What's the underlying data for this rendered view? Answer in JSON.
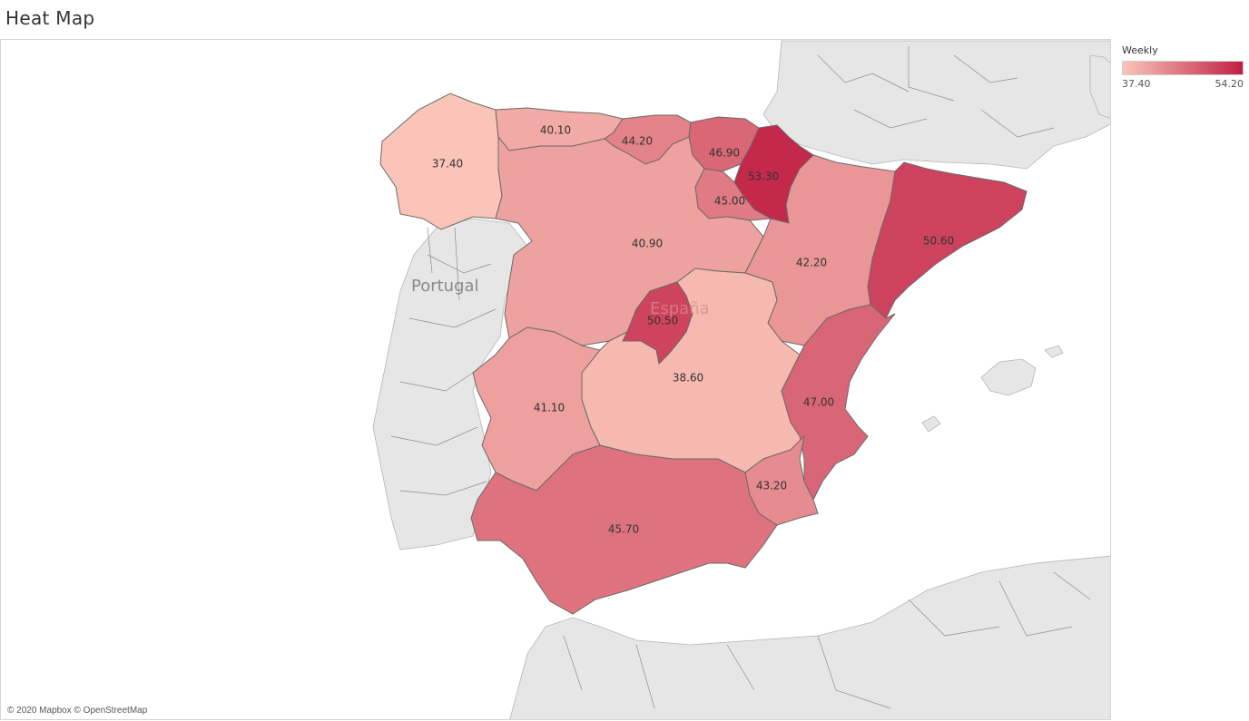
{
  "title": "Heat Map",
  "legend": {
    "title": "Weekly",
    "min_label": "37.40",
    "max_label": "54.20",
    "min": 37.4,
    "max": 54.2,
    "color_low": "#fac5b8",
    "color_high": "#c11f44"
  },
  "attribution": "© 2020 Mapbox © OpenStreetMap",
  "map_labels": {
    "portugal": "Portugal",
    "espana": "España"
  },
  "regions": [
    {
      "id": "galicia",
      "value": 37.4,
      "label": "37.40"
    },
    {
      "id": "asturias",
      "value": 40.1,
      "label": "40.10"
    },
    {
      "id": "cantabria",
      "value": 44.2,
      "label": "44.20"
    },
    {
      "id": "pais-vasco",
      "value": 46.9,
      "label": "46.90"
    },
    {
      "id": "navarra",
      "value": 53.3,
      "label": "53.30"
    },
    {
      "id": "la-rioja",
      "value": 45.0,
      "label": "45.00"
    },
    {
      "id": "castilla-y-leon",
      "value": 40.9,
      "label": "40.90"
    },
    {
      "id": "aragon",
      "value": 42.2,
      "label": "42.20"
    },
    {
      "id": "cataluna",
      "value": 50.6,
      "label": "50.60"
    },
    {
      "id": "madrid",
      "value": 50.5,
      "label": "50.50"
    },
    {
      "id": "castilla-la-mancha",
      "value": 38.6,
      "label": "38.60"
    },
    {
      "id": "extremadura",
      "value": 41.1,
      "label": "41.10"
    },
    {
      "id": "valencia",
      "value": 47.0,
      "label": "47.00"
    },
    {
      "id": "murcia",
      "value": 43.2,
      "label": "43.20"
    },
    {
      "id": "andalucia",
      "value": 45.7,
      "label": "45.70"
    }
  ]
}
